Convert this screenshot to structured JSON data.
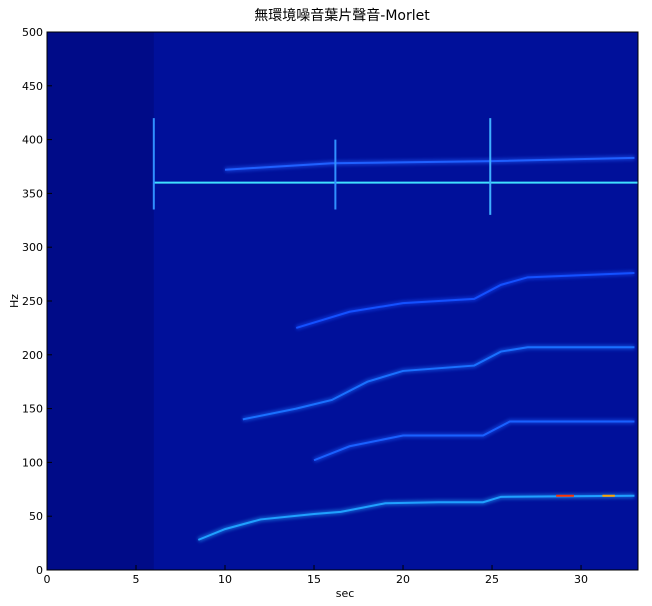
{
  "chart_data": {
    "type": "spectrogram",
    "title": "無環境噪音葉片聲音-Morlet",
    "xlabel": "sec",
    "ylabel": "Hz",
    "xlim": [
      0,
      33.2
    ],
    "ylim": [
      0,
      500
    ],
    "xticks": [
      0,
      5,
      10,
      15,
      20,
      25,
      30
    ],
    "yticks": [
      0,
      50,
      100,
      150,
      200,
      250,
      300,
      350,
      400,
      450,
      500
    ],
    "background": "#00109a",
    "ridges": [
      {
        "color": "#40e0ff",
        "x": [
          6,
          33.2
        ],
        "y": [
          360,
          360
        ]
      },
      {
        "color": "#2060ff",
        "x": [
          10,
          16,
          25,
          33
        ],
        "y": [
          372,
          378,
          380,
          383
        ]
      },
      {
        "color": "#3090ff",
        "x": [
          6,
          6
        ],
        "y": [
          335,
          420
        ]
      },
      {
        "color": "#3090ff",
        "x": [
          16.2,
          16.2
        ],
        "y": [
          335,
          400
        ]
      },
      {
        "color": "#40b0ff",
        "x": [
          24.9,
          24.9
        ],
        "y": [
          330,
          420
        ]
      },
      {
        "color": "#20a0ff",
        "x": [
          8.5,
          10,
          12,
          15,
          16.5,
          19,
          22,
          24.5,
          25.5,
          33
        ],
        "y": [
          28,
          38,
          47,
          52,
          54,
          62,
          63,
          63,
          68,
          69
        ]
      },
      {
        "color": "#1a60ff",
        "x": [
          15,
          17,
          20,
          24.5,
          26,
          33
        ],
        "y": [
          102,
          115,
          125,
          125,
          138,
          138
        ]
      },
      {
        "color": "#1a70ff",
        "x": [
          11,
          14,
          16,
          18,
          20,
          24,
          25.5,
          27,
          33
        ],
        "y": [
          140,
          150,
          158,
          175,
          185,
          190,
          203,
          207,
          207
        ]
      },
      {
        "color": "#1450ff",
        "x": [
          14,
          17,
          20,
          24,
          25.5,
          27,
          33
        ],
        "y": [
          225,
          240,
          248,
          252,
          265,
          272,
          276
        ]
      },
      {
        "color": "#ff3000",
        "x": [
          28.6,
          29.6
        ],
        "y": [
          69,
          69
        ]
      },
      {
        "color": "#ffa000",
        "x": [
          31.2,
          31.9
        ],
        "y": [
          69,
          69
        ]
      }
    ]
  }
}
